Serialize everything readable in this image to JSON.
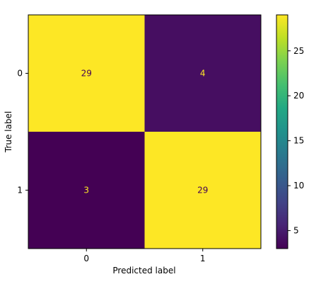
{
  "chart_data": {
    "type": "heatmap",
    "title": "",
    "xlabel": "Predicted label",
    "ylabel": "True label",
    "x_categories": [
      "0",
      "1"
    ],
    "y_categories": [
      "0",
      "1"
    ],
    "matrix": [
      [
        29,
        4
      ],
      [
        3,
        29
      ]
    ],
    "cell_labels": [
      [
        "29",
        "4"
      ],
      [
        "3",
        "29"
      ]
    ],
    "colormap": "viridis",
    "colorbar": {
      "range": [
        3,
        29
      ],
      "ticks": [
        "5",
        "10",
        "15",
        "20",
        "25"
      ],
      "tick_values": [
        5,
        10,
        15,
        20,
        25
      ]
    },
    "colors": {
      "high": "#fde725",
      "low": "#440154",
      "text_on_high": "#440154",
      "text_on_low": "#fde725"
    }
  }
}
